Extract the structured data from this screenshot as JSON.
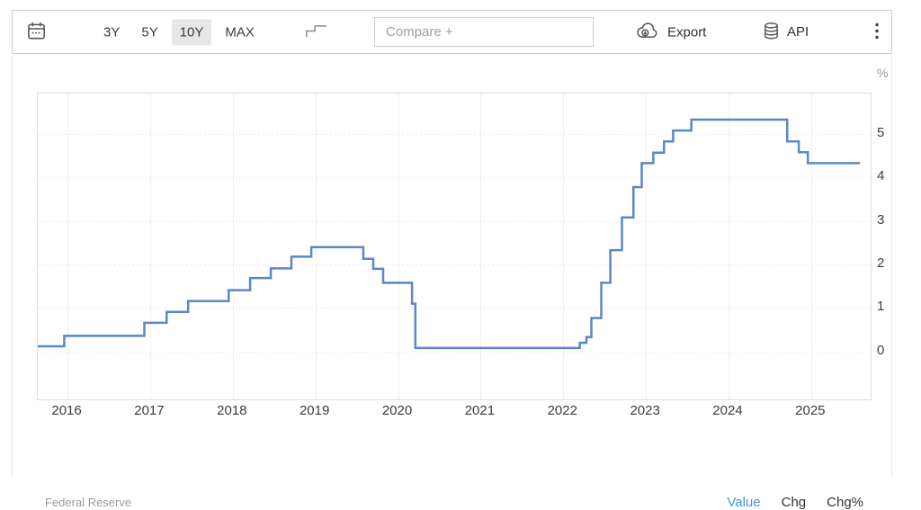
{
  "toolbar": {
    "calendar_icon": "calendar-icon",
    "ranges": [
      {
        "label": "3Y",
        "selected": false
      },
      {
        "label": "5Y",
        "selected": false
      },
      {
        "label": "10Y",
        "selected": true
      },
      {
        "label": "MAX",
        "selected": false
      }
    ],
    "chart_type_icon": "step-line-icon",
    "compare": {
      "placeholder": "Compare +",
      "value": ""
    },
    "export_label": "Export",
    "api_label": "API",
    "menu_icon": "kebab-menu-icon"
  },
  "chart_data": {
    "type": "line",
    "line_style": "step-after",
    "title": "",
    "unit": "%",
    "source": "Federal Reserve",
    "grid": true,
    "legend": "none",
    "line_color": "#5b87c5",
    "xlim": [
      2015.64,
      2025.72
    ],
    "ylim": [
      -1.1,
      5.93
    ],
    "x_ticks": [
      2016,
      2017,
      2018,
      2019,
      2020,
      2021,
      2022,
      2023,
      2024,
      2025
    ],
    "y_ticks": [
      0,
      1,
      2,
      3,
      4,
      5
    ],
    "points": [
      [
        2015.64,
        0.12
      ],
      [
        2015.96,
        0.36
      ],
      [
        2016.93,
        0.66
      ],
      [
        2017.2,
        0.91
      ],
      [
        2017.46,
        1.16
      ],
      [
        2017.95,
        1.41
      ],
      [
        2018.21,
        1.69
      ],
      [
        2018.46,
        1.91
      ],
      [
        2018.71,
        2.18
      ],
      [
        2018.95,
        2.4
      ],
      [
        2019.58,
        2.13
      ],
      [
        2019.7,
        1.9
      ],
      [
        2019.82,
        1.58
      ],
      [
        2020.17,
        1.1
      ],
      [
        2020.21,
        0.08
      ],
      [
        2022.2,
        0.2
      ],
      [
        2022.28,
        0.33
      ],
      [
        2022.34,
        0.77
      ],
      [
        2022.46,
        1.58
      ],
      [
        2022.57,
        2.33
      ],
      [
        2022.71,
        3.08
      ],
      [
        2022.85,
        3.78
      ],
      [
        2022.95,
        4.33
      ],
      [
        2023.09,
        4.57
      ],
      [
        2023.22,
        4.83
      ],
      [
        2023.33,
        5.08
      ],
      [
        2023.55,
        5.33
      ],
      [
        2024.71,
        4.83
      ],
      [
        2024.85,
        4.58
      ],
      [
        2024.96,
        4.33
      ],
      [
        2025.59,
        4.33
      ]
    ]
  },
  "footer": {
    "source_label": "Federal Reserve",
    "links": [
      {
        "label": "Value",
        "active": true
      },
      {
        "label": "Chg",
        "active": false
      },
      {
        "label": "Chg%",
        "active": false
      }
    ]
  },
  "colors": {
    "line_blue": "#5b87c5",
    "active_link_blue": "#4a90e2",
    "selected_range_bg": "#e7e7e7",
    "grid_line": "#ececec",
    "axis_text": "#3c3c3c"
  }
}
